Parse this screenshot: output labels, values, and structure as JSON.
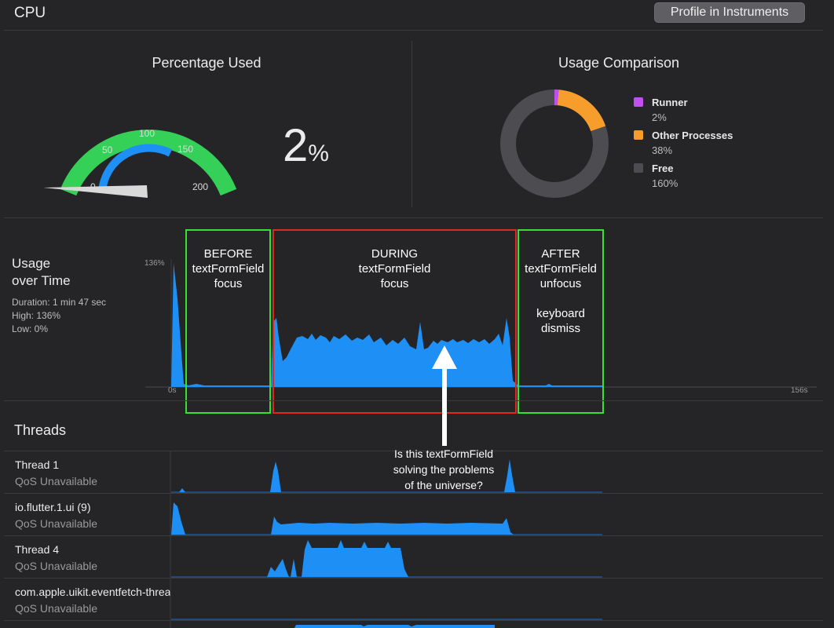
{
  "header": {
    "title": "CPU",
    "profile_button": "Profile in Instruments"
  },
  "percentage_used": {
    "title": "Percentage Used",
    "value": "2",
    "unit": "%",
    "gauge_ticks": [
      "0",
      "50",
      "100",
      "150",
      "200"
    ],
    "colors": {
      "outer": "#34d058",
      "inner": "#1e8ff5",
      "needle": "#d9d9d9"
    }
  },
  "usage_comparison": {
    "title": "Usage Comparison",
    "legend": [
      {
        "name": "Runner",
        "value": "2%",
        "color": "#c050f0"
      },
      {
        "name": "Other Processes",
        "value": "38%",
        "color": "#f79d2c"
      },
      {
        "name": "Free",
        "value": "160%",
        "color": "#4d4c50"
      }
    ]
  },
  "usage_over_time": {
    "title_line1": "Usage",
    "title_line2": "over Time",
    "duration": "Duration: 1 min 47 sec",
    "high": "High: 136%",
    "low": "Low: 0%",
    "y_max_label": "136%",
    "x_start_label": "0s",
    "x_end_label": "156s",
    "color": "#1e8ff5"
  },
  "annotations": {
    "before": "BEFORE\ntextFormField\nfocus",
    "during": "DURING\ntextFormField\nfocus",
    "after": "AFTER\ntextFormField\nunfocus\n\nkeyboard\ndismiss",
    "callout": "Is this textFormField\nsolving the problems\nof the universe?"
  },
  "threads": {
    "title": "Threads",
    "items": [
      {
        "name": "Thread 1",
        "qos": "QoS Unavailable"
      },
      {
        "name": "io.flutter.1.ui (9)",
        "qos": "QoS Unavailable"
      },
      {
        "name": "Thread 4",
        "qos": "QoS Unavailable"
      },
      {
        "name": "com.apple.uikit.eventfetch-thread",
        "qos": "QoS Unavailable"
      }
    ]
  }
}
